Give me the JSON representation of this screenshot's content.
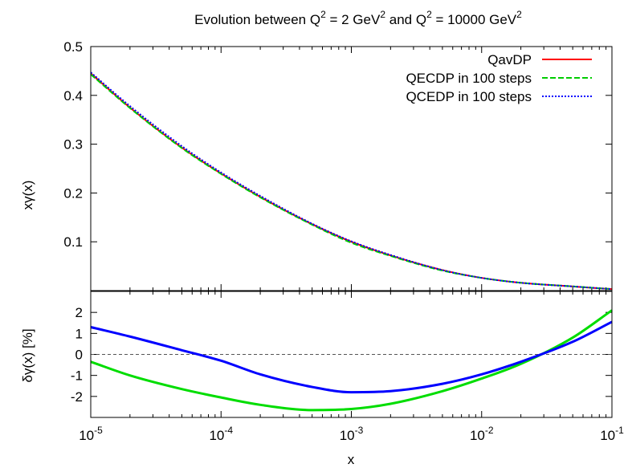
{
  "chart_data": {
    "title": {
      "prefix": "Evolution between Q",
      "sup1": "2",
      "part2": " = 2 GeV",
      "sup2": "2",
      "part3": " and Q",
      "sup3": "2",
      "part4": " = 10000 GeV",
      "sup4": "2"
    },
    "xlabel": "x",
    "x_scale": "log",
    "xlim": [
      1e-05,
      0.1
    ],
    "x_ticks": [
      {
        "base": "10",
        "exp": "-5",
        "value": 1e-05
      },
      {
        "base": "10",
        "exp": "-4",
        "value": 0.0001
      },
      {
        "base": "10",
        "exp": "-3",
        "value": 0.001
      },
      {
        "base": "10",
        "exp": "-2",
        "value": 0.01
      },
      {
        "base": "10",
        "exp": "-1",
        "value": 0.1
      }
    ],
    "panels": [
      {
        "type": "line",
        "ylabel": "xγ(x)",
        "ylim": [
          0,
          0.5
        ],
        "y_ticks": [
          "0.1",
          "0.2",
          "0.3",
          "0.4",
          "0.5"
        ],
        "y_tick_values": [
          0.1,
          0.2,
          0.3,
          0.4,
          0.5
        ],
        "grid": false,
        "legend_position": "top-right",
        "x": [
          1e-05,
          2e-05,
          5e-05,
          0.0001,
          0.0002,
          0.0005,
          0.001,
          0.002,
          0.005,
          0.01,
          0.02,
          0.05,
          0.1
        ],
        "series": [
          {
            "name": "QavDP",
            "color": "#ff0000",
            "dash": "solid",
            "values": [
              0.445,
              0.375,
              0.293,
              0.24,
              0.192,
              0.136,
              0.1,
              0.072,
              0.042,
              0.026,
              0.016,
              0.0085,
              0.003
            ]
          },
          {
            "name": "QECDP in 100 steps",
            "color": "#00cc00",
            "dash": "dashed",
            "values": [
              0.443,
              0.374,
              0.292,
              0.239,
              0.191,
              0.135,
              0.098,
              0.071,
              0.041,
              0.026,
              0.016,
              0.0086,
              0.003
            ]
          },
          {
            "name": "QCEDP in 100 steps",
            "color": "#0000ff",
            "dash": "dotted",
            "values": [
              0.447,
              0.378,
              0.296,
              0.242,
              0.194,
              0.137,
              0.101,
              0.073,
              0.042,
              0.026,
              0.016,
              0.0085,
              0.003
            ]
          }
        ]
      },
      {
        "type": "line",
        "ylabel": "δγ(x) [%]",
        "ylim": [
          -3,
          3
        ],
        "y_ticks": [
          "-2",
          "-1",
          "0",
          "1",
          "2"
        ],
        "y_tick_values": [
          -2,
          -1,
          0,
          1,
          2
        ],
        "reference_line": 0,
        "reference_color": "#555555",
        "x": [
          1e-05,
          2e-05,
          5e-05,
          0.0001,
          0.0002,
          0.0005,
          0.001,
          0.002,
          0.005,
          0.01,
          0.02,
          0.05,
          0.1
        ],
        "series": [
          {
            "color": "#00dd00",
            "values": [
              -0.35,
              -1.0,
              -1.65,
              -2.05,
              -2.4,
              -2.65,
              -2.6,
              -2.35,
              -1.75,
              -1.15,
              -0.45,
              0.8,
              2.1
            ]
          },
          {
            "color": "#0000ff",
            "values": [
              1.3,
              0.85,
              0.2,
              -0.3,
              -0.95,
              -1.55,
              -1.8,
              -1.75,
              -1.4,
              -0.95,
              -0.35,
              0.6,
              1.55
            ]
          }
        ]
      }
    ]
  }
}
